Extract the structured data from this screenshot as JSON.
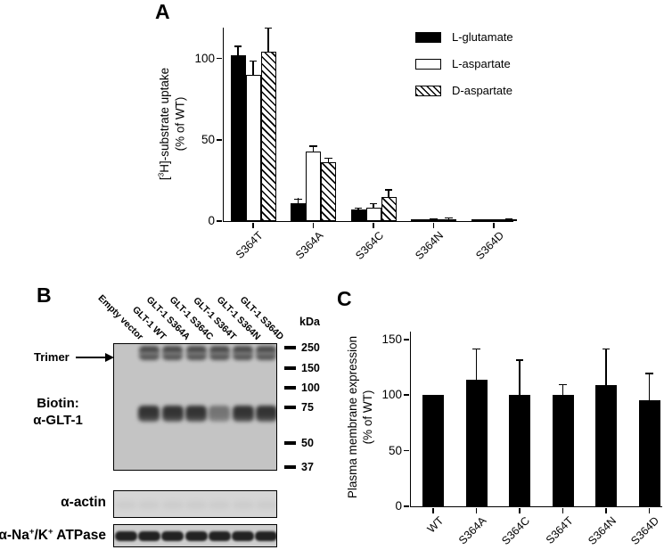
{
  "figure": {
    "panel_a": {
      "label": "A",
      "ylabel": {
        "pre": "[",
        "sup": "3",
        "post": "H]-substrate uptake",
        "line2": "(% of WT)"
      },
      "legend": [
        {
          "name": "L-glutamate",
          "style": "solid"
        },
        {
          "name": "L-aspartate",
          "style": "open"
        },
        {
          "name": "D-aspartate",
          "style": "hatch"
        }
      ]
    },
    "panel_b": {
      "label": "B",
      "lane_labels": [
        "Empty vector",
        "GLT-1 WT",
        "GLT-1 S364A",
        "GLT-1 S364C",
        "GLT-1 S364T",
        "GLT-1 S364N",
        "GLT-1 S364D"
      ],
      "kda_header": "kDa",
      "markers": [
        "250",
        "150",
        "100",
        "75",
        "50",
        "37"
      ],
      "trimer_label": "Trimer",
      "biotin_label_line1": "Biotin:",
      "biotin_label_line2": "α-GLT-1",
      "actin_label": "α-actin",
      "atpase_label": {
        "pre": "α-Na",
        "sup1": "+",
        "mid": "/K",
        "sup2": "+",
        "post": " ATPase"
      },
      "bands": {
        "trimer": [
          0,
          1,
          1,
          1,
          1,
          1,
          1
        ],
        "monomer": [
          0,
          1,
          1,
          1,
          0.55,
          1,
          1
        ],
        "actin": [
          0.12,
          0.12,
          0.12,
          0.12,
          0.12,
          0.12,
          0.12
        ],
        "atpase": [
          1,
          1,
          1,
          1,
          1,
          1,
          1
        ]
      }
    },
    "panel_c": {
      "label": "C",
      "ylabel": {
        "line1": "Plasma membrane expression",
        "line2": "(% of WT)"
      }
    }
  },
  "chart_data": [
    {
      "panel": "A",
      "type": "bar",
      "title": "",
      "ylabel": "[3H]-substrate uptake (% of WT)",
      "categories": [
        "S364T",
        "S364A",
        "S364C",
        "S364N",
        "S364D"
      ],
      "series": [
        {
          "name": "L-glutamate",
          "style": "solid",
          "values": [
            102,
            11,
            7,
            0.5,
            0.8
          ],
          "errors": [
            6,
            3,
            1.5,
            0.4,
            0.4
          ]
        },
        {
          "name": "L-aspartate",
          "style": "open",
          "values": [
            90,
            43,
            8,
            1,
            0.8
          ],
          "errors": [
            9,
            3.5,
            3,
            0.8,
            0.5
          ]
        },
        {
          "name": "D-aspartate",
          "style": "hatch",
          "values": [
            104,
            36,
            15,
            1.2,
            1
          ],
          "errors": [
            15,
            3,
            4.5,
            1,
            0.7
          ]
        }
      ],
      "yticks": [
        0,
        50,
        100
      ],
      "ylim": [
        0,
        119
      ],
      "grid": false,
      "legend_position": "upper right"
    },
    {
      "panel": "C",
      "type": "bar",
      "title": "",
      "ylabel": "Plasma membrane expression (% of WT)",
      "categories": [
        "WT",
        "S364A",
        "S364C",
        "S364T",
        "S364N",
        "S364D"
      ],
      "series": [
        {
          "name": "Plasma membrane expression",
          "style": "solid",
          "values": [
            100,
            114,
            100,
            100,
            109,
            95
          ],
          "errors": [
            0,
            28,
            32,
            10,
            33,
            25
          ]
        }
      ],
      "yticks": [
        0,
        50,
        100,
        150
      ],
      "ylim": [
        0,
        157
      ],
      "grid": false,
      "legend_position": "none"
    }
  ]
}
